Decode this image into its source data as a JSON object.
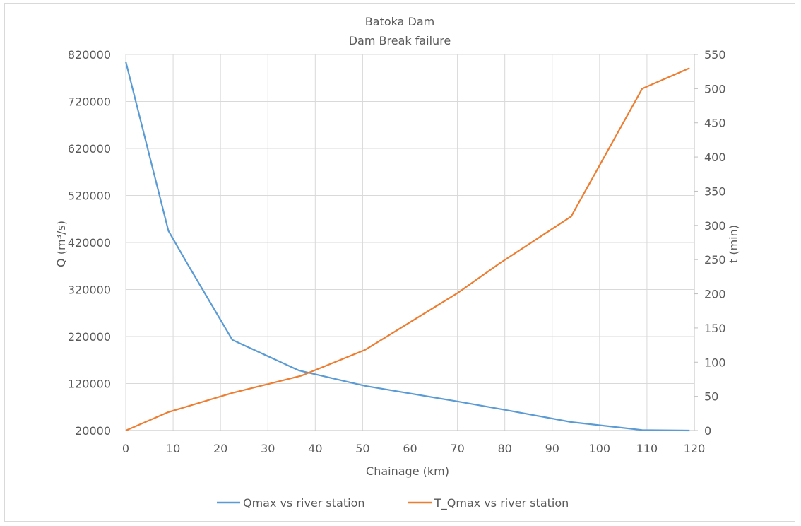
{
  "chart_data": {
    "type": "line",
    "title": "Batoka Dam",
    "subtitle": "Dam Break failure",
    "xlabel": "Chainage (km)",
    "ylabel_left": "Q (m³/s)",
    "ylabel_right": "t (min)",
    "xlim": [
      0,
      120
    ],
    "ylim_left": [
      20000,
      820000
    ],
    "ylim_right": [
      0,
      550
    ],
    "x_ticks": [
      "0",
      "10",
      "20",
      "30",
      "40",
      "50",
      "60",
      "70",
      "80",
      "90",
      "100",
      "110",
      "120"
    ],
    "y_left_ticks": [
      "20000",
      "120000",
      "220000",
      "320000",
      "420000",
      "520000",
      "620000",
      "720000",
      "820000"
    ],
    "y_right_ticks": [
      "0",
      "50",
      "100",
      "150",
      "200",
      "250",
      "300",
      "350",
      "400",
      "450",
      "500",
      "550"
    ],
    "grid": true,
    "legend_position": "bottom",
    "series": [
      {
        "name": "Qmax vs river station",
        "axis": "left",
        "color": "#5b9bd5",
        "points": [
          [
            0,
            805000
          ],
          [
            9,
            445000
          ],
          [
            13,
            375000
          ],
          [
            22.5,
            213000
          ],
          [
            36.5,
            148000
          ],
          [
            50.5,
            115000
          ],
          [
            70,
            82000
          ],
          [
            80,
            64000
          ],
          [
            94,
            38000
          ],
          [
            109,
            21000
          ],
          [
            119,
            20000
          ]
        ]
      },
      {
        "name": "T_Qmax vs river station",
        "axis": "right",
        "color": "#ed7d31",
        "points": [
          [
            0,
            0
          ],
          [
            9,
            27
          ],
          [
            22.5,
            55
          ],
          [
            37,
            80
          ],
          [
            50.5,
            118
          ],
          [
            70,
            201
          ],
          [
            79,
            245
          ],
          [
            94,
            313
          ],
          [
            109,
            500
          ],
          [
            119,
            530
          ]
        ]
      }
    ]
  }
}
